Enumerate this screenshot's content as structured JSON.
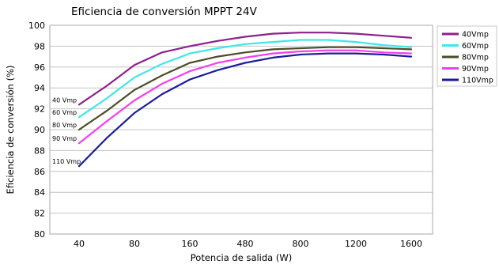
{
  "chart_data": {
    "type": "line",
    "title": "Eficiencia de conversión MPPT 24V",
    "xlabel": "Potencia de salida (W)",
    "ylabel": "Eficiencia de conversión (%)",
    "x_ticks": [
      "40",
      "80",
      "160",
      "480",
      "800",
      "1200",
      "1600"
    ],
    "y_ticks": [
      80,
      82,
      84,
      86,
      88,
      90,
      92,
      94,
      96,
      98,
      100
    ],
    "ylim": [
      80,
      100
    ],
    "grid": true,
    "legend_position": "right",
    "series": [
      {
        "name": "40Vmp",
        "label": "40 Vmp",
        "color": "#8e1f8e",
        "points": [
          [
            0,
            92.4
          ],
          [
            0.5,
            94.2
          ],
          [
            1,
            96.2
          ],
          [
            1.5,
            97.4
          ],
          [
            2,
            98.0
          ],
          [
            2.5,
            98.5
          ],
          [
            3,
            98.9
          ],
          [
            3.5,
            99.2
          ],
          [
            4,
            99.3
          ],
          [
            4.5,
            99.3
          ],
          [
            5,
            99.2
          ],
          [
            5.5,
            99.0
          ],
          [
            6,
            98.8
          ]
        ]
      },
      {
        "name": "60Vmp",
        "label": "60 Vmp",
        "color": "#3fe6ec",
        "points": [
          [
            0,
            91.2
          ],
          [
            0.5,
            93.0
          ],
          [
            1,
            95.0
          ],
          [
            1.5,
            96.3
          ],
          [
            2,
            97.3
          ],
          [
            2.5,
            97.8
          ],
          [
            3,
            98.2
          ],
          [
            3.5,
            98.4
          ],
          [
            4,
            98.6
          ],
          [
            4.5,
            98.6
          ],
          [
            5,
            98.4
          ],
          [
            5.5,
            98.1
          ],
          [
            6,
            97.9
          ]
        ]
      },
      {
        "name": "80Vmp",
        "label": "80 Vmp",
        "color": "#4a4d25",
        "points": [
          [
            0,
            90.0
          ],
          [
            0.5,
            91.8
          ],
          [
            1,
            93.8
          ],
          [
            1.5,
            95.2
          ],
          [
            2,
            96.4
          ],
          [
            2.5,
            97.0
          ],
          [
            3,
            97.4
          ],
          [
            3.5,
            97.7
          ],
          [
            4,
            97.8
          ],
          [
            4.5,
            97.9
          ],
          [
            5,
            97.9
          ],
          [
            5.5,
            97.8
          ],
          [
            6,
            97.7
          ]
        ]
      },
      {
        "name": "90Vmp",
        "label": "90 Vmp",
        "color": "#f23df0",
        "points": [
          [
            0,
            88.7
          ],
          [
            0.5,
            90.8
          ],
          [
            1,
            92.8
          ],
          [
            1.5,
            94.4
          ],
          [
            2,
            95.6
          ],
          [
            2.5,
            96.4
          ],
          [
            3,
            96.9
          ],
          [
            3.5,
            97.3
          ],
          [
            4,
            97.5
          ],
          [
            4.5,
            97.6
          ],
          [
            5,
            97.6
          ],
          [
            5.5,
            97.4
          ],
          [
            6,
            97.3
          ]
        ]
      },
      {
        "name": "110Vmp",
        "label": "110 Vmp",
        "color": "#1c1c9a",
        "points": [
          [
            0,
            86.5
          ],
          [
            0.5,
            89.2
          ],
          [
            1,
            91.6
          ],
          [
            1.5,
            93.4
          ],
          [
            2,
            94.8
          ],
          [
            2.5,
            95.7
          ],
          [
            3,
            96.4
          ],
          [
            3.5,
            96.9
          ],
          [
            4,
            97.2
          ],
          [
            4.5,
            97.3
          ],
          [
            5,
            97.3
          ],
          [
            5.5,
            97.2
          ],
          [
            6,
            97.0
          ]
        ]
      }
    ]
  }
}
